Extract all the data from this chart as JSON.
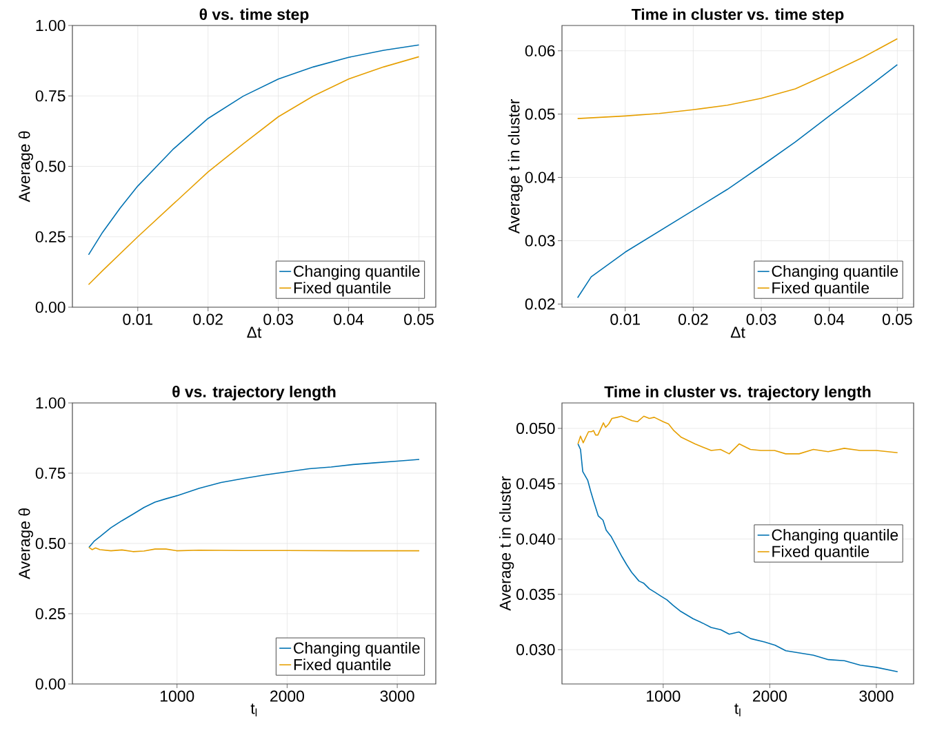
{
  "chart_data": [
    {
      "type": "line",
      "title": "θ vs. time step",
      "xlabel": "Δt",
      "ylabel": "Average θ",
      "grid": true,
      "legend": "bottom right",
      "xlim": [
        0.0007,
        0.0524
      ],
      "ylim": [
        0,
        1
      ],
      "xticks": [
        0.01,
        0.02,
        0.03,
        0.04,
        0.05
      ],
      "yticks": [
        {
          "value": 0,
          "label": "0.00"
        },
        {
          "value": 0.25,
          "label": "0.25"
        },
        {
          "value": 0.5,
          "label": "0.50"
        },
        {
          "value": 0.75,
          "label": "0.75"
        },
        {
          "value": 1,
          "label": "1.00"
        }
      ],
      "series": [
        {
          "name": "Changing quantile",
          "color": "#0072b2",
          "x": [
            0.003,
            0.005,
            0.0075,
            0.01,
            0.015,
            0.02,
            0.025,
            0.03,
            0.035,
            0.04,
            0.045,
            0.05
          ],
          "values": [
            0.186,
            0.266,
            0.352,
            0.43,
            0.56,
            0.67,
            0.749,
            0.81,
            0.853,
            0.887,
            0.912,
            0.931
          ]
        },
        {
          "name": "Fixed quantile",
          "color": "#e69f00",
          "x": [
            0.003,
            0.005,
            0.01,
            0.015,
            0.02,
            0.025,
            0.03,
            0.035,
            0.04,
            0.045,
            0.05
          ],
          "values": [
            0.08,
            0.13,
            0.25,
            0.365,
            0.48,
            0.58,
            0.676,
            0.75,
            0.81,
            0.853,
            0.889
          ]
        }
      ]
    },
    {
      "type": "line",
      "title": "Time in cluster vs. time step",
      "xlabel": "Δt",
      "ylabel": "Average t in cluster",
      "grid": true,
      "legend": "bottom right",
      "xlim": [
        0.0007,
        0.0524
      ],
      "ylim": [
        0.0195,
        0.064
      ],
      "xticks": [
        0.01,
        0.02,
        0.03,
        0.04,
        0.05
      ],
      "yticks": [
        0.02,
        0.03,
        0.04,
        0.05,
        0.06
      ],
      "series": [
        {
          "name": "Changing quantile",
          "color": "#0072b2",
          "x": [
            0.003,
            0.005,
            0.01,
            0.015,
            0.02,
            0.025,
            0.03,
            0.035,
            0.04,
            0.045,
            0.05
          ],
          "values": [
            0.021,
            0.0243,
            0.0282,
            0.0315,
            0.0348,
            0.0381,
            0.0418,
            0.0456,
            0.0497,
            0.0537,
            0.0578
          ]
        },
        {
          "name": "Fixed quantile",
          "color": "#e69f00",
          "x": [
            0.003,
            0.01,
            0.015,
            0.02,
            0.025,
            0.03,
            0.035,
            0.04,
            0.045,
            0.05
          ],
          "values": [
            0.0493,
            0.0497,
            0.0501,
            0.0507,
            0.0514,
            0.0525,
            0.054,
            0.0564,
            0.059,
            0.0619
          ]
        }
      ]
    },
    {
      "type": "line",
      "title": "θ vs. trajectory length",
      "xlabel": "t$_{l}$",
      "ylabel": "Average θ",
      "grid": true,
      "legend": "bottom right",
      "xlim": [
        50,
        3350
      ],
      "ylim": [
        0,
        1
      ],
      "xticks": [
        1000,
        2000,
        3000
      ],
      "yticks": [
        {
          "value": 0,
          "label": "0.00"
        },
        {
          "value": 0.25,
          "label": "0.25"
        },
        {
          "value": 0.5,
          "label": "0.50"
        },
        {
          "value": 0.75,
          "label": "0.75"
        },
        {
          "value": 1,
          "label": "1.00"
        }
      ],
      "series": [
        {
          "name": "Changing quantile",
          "color": "#0072b2",
          "x": [
            200,
            250,
            300,
            400,
            500,
            600,
            700,
            800,
            900,
            1000,
            1200,
            1400,
            1600,
            1800,
            2000,
            2200,
            2400,
            2600,
            2800,
            3000,
            3200
          ],
          "values": [
            0.486,
            0.509,
            0.524,
            0.556,
            0.581,
            0.604,
            0.628,
            0.647,
            0.659,
            0.67,
            0.696,
            0.717,
            0.731,
            0.744,
            0.755,
            0.766,
            0.772,
            0.781,
            0.787,
            0.793,
            0.799
          ]
        },
        {
          "name": "Fixed quantile",
          "color": "#e69f00",
          "x": [
            200,
            230,
            260,
            300,
            400,
            500,
            600,
            700,
            800,
            900,
            1000,
            1200,
            1600,
            2000,
            2600,
            3200
          ],
          "values": [
            0.486,
            0.478,
            0.484,
            0.478,
            0.474,
            0.477,
            0.471,
            0.473,
            0.48,
            0.48,
            0.474,
            0.476,
            0.475,
            0.475,
            0.474,
            0.474
          ]
        }
      ]
    },
    {
      "type": "line",
      "title": "Time in cluster vs. trajectory length",
      "xlabel": "t$_{l}$",
      "ylabel": "Average t in cluster",
      "grid": true,
      "legend": "right",
      "xlim": [
        50,
        3350
      ],
      "ylim": [
        0.0269,
        0.0523
      ],
      "xticks": [
        1000,
        2000,
        3000
      ],
      "yticks": [
        {
          "value": 0.03,
          "label": "0.030"
        },
        {
          "value": 0.035,
          "label": "0.035"
        },
        {
          "value": 0.04,
          "label": "0.040"
        },
        0.045,
        {
          "value": 0.05,
          "label": "0.050"
        }
      ],
      "series": [
        {
          "name": "Changing quantile",
          "color": "#0072b2",
          "x": [
            200,
            224,
            245,
            292,
            320,
            348,
            390,
            435,
            465,
            513,
            563,
            613,
            656,
            703,
            773,
            818,
            870,
            920,
            985,
            1035,
            1093,
            1158,
            1280,
            1370,
            1450,
            1540,
            1620,
            1710,
            1820,
            1950,
            2050,
            2150,
            2410,
            2550,
            2700,
            2850,
            3000,
            3200
          ],
          "values": [
            0.0486,
            0.0481,
            0.0461,
            0.0453,
            0.0443,
            0.0434,
            0.0421,
            0.0417,
            0.0408,
            0.0402,
            0.0393,
            0.0384,
            0.0377,
            0.037,
            0.0362,
            0.036,
            0.0355,
            0.0352,
            0.0348,
            0.0345,
            0.034,
            0.0335,
            0.0328,
            0.0324,
            0.032,
            0.0318,
            0.0314,
            0.0316,
            0.031,
            0.0307,
            0.0304,
            0.0299,
            0.0295,
            0.0291,
            0.029,
            0.0286,
            0.0284,
            0.028
          ]
        },
        {
          "name": "Fixed quantile",
          "color": "#e69f00",
          "x": [
            200,
            224,
            249,
            299,
            327,
            346,
            366,
            387,
            439,
            459,
            489,
            519,
            569,
            608,
            658,
            708,
            758,
            818,
            870,
            916,
            1000,
            1050,
            1100,
            1169,
            1299,
            1398,
            1450,
            1537,
            1619,
            1714,
            1818,
            1916,
            2045,
            2149,
            2275,
            2409,
            2548,
            2699,
            2846,
            3000,
            3199
          ],
          "values": [
            0.0486,
            0.0493,
            0.0487,
            0.0497,
            0.0497,
            0.0498,
            0.0494,
            0.0494,
            0.0505,
            0.0501,
            0.0504,
            0.0509,
            0.051,
            0.0511,
            0.0509,
            0.0507,
            0.0506,
            0.0511,
            0.0509,
            0.051,
            0.0506,
            0.0504,
            0.0498,
            0.0492,
            0.0486,
            0.0482,
            0.048,
            0.0481,
            0.0477,
            0.0486,
            0.0481,
            0.048,
            0.048,
            0.0477,
            0.0477,
            0.0481,
            0.0479,
            0.0482,
            0.048,
            0.048,
            0.0478
          ]
        }
      ]
    }
  ]
}
